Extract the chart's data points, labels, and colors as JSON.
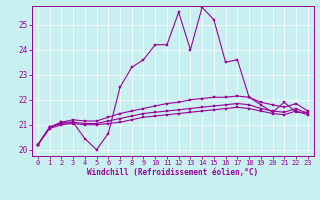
{
  "xlabel": "Windchill (Refroidissement éolien,°C)",
  "background_color": "#c8f0f0",
  "line_color": "#990099",
  "xlim": [
    -0.5,
    23.5
  ],
  "ylim": [
    19.75,
    25.75
  ],
  "yticks": [
    20,
    21,
    22,
    23,
    24,
    25
  ],
  "xticks": [
    0,
    1,
    2,
    3,
    4,
    5,
    6,
    7,
    8,
    9,
    10,
    11,
    12,
    13,
    14,
    15,
    16,
    17,
    18,
    19,
    20,
    21,
    22,
    23
  ],
  "series": [
    [
      20.2,
      20.9,
      21.1,
      21.1,
      20.45,
      20.0,
      20.65,
      22.5,
      23.3,
      23.6,
      24.2,
      24.2,
      25.5,
      24.0,
      25.7,
      25.2,
      23.5,
      23.6,
      22.1,
      21.8,
      21.5,
      21.9,
      21.5,
      21.5
    ],
    [
      20.2,
      20.9,
      21.1,
      21.2,
      21.15,
      21.15,
      21.3,
      21.45,
      21.55,
      21.65,
      21.75,
      21.85,
      21.9,
      22.0,
      22.05,
      22.1,
      22.1,
      22.15,
      22.1,
      21.9,
      21.8,
      21.7,
      21.85,
      21.55
    ],
    [
      20.2,
      20.9,
      21.05,
      21.1,
      21.05,
      21.05,
      21.15,
      21.25,
      21.35,
      21.45,
      21.5,
      21.55,
      21.6,
      21.65,
      21.7,
      21.75,
      21.8,
      21.85,
      21.8,
      21.65,
      21.55,
      21.5,
      21.65,
      21.45
    ],
    [
      20.2,
      20.85,
      21.0,
      21.05,
      21.0,
      21.0,
      21.05,
      21.1,
      21.2,
      21.3,
      21.35,
      21.4,
      21.45,
      21.5,
      21.55,
      21.6,
      21.65,
      21.7,
      21.65,
      21.55,
      21.45,
      21.4,
      21.55,
      21.4
    ]
  ]
}
